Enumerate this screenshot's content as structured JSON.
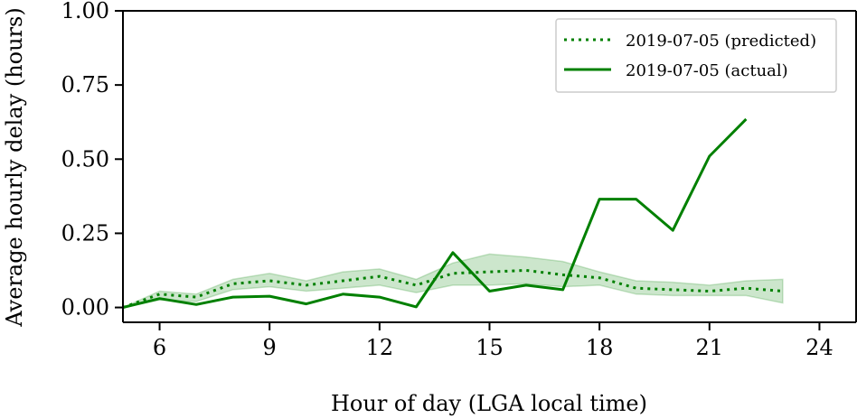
{
  "chart_data": {
    "type": "line",
    "title": "",
    "xlabel": "Hour of day (LGA local time)",
    "ylabel": "Average hourly delay (hours)",
    "xlim": [
      5,
      25
    ],
    "ylim": [
      -0.05,
      1.0
    ],
    "xticks": [
      6,
      9,
      12,
      15,
      18,
      21,
      24
    ],
    "yticks": [
      0.0,
      0.25,
      0.5,
      0.75,
      1.0
    ],
    "ytick_labels": [
      "0.00",
      "0.25",
      "0.50",
      "0.75",
      "1.00"
    ],
    "grid": false,
    "legend_position": "top-right",
    "series": [
      {
        "name": "2019-07-05 (predicted)",
        "style": "dotted",
        "color": "#008000",
        "x": [
          5,
          6,
          7,
          8,
          9,
          10,
          11,
          12,
          13,
          14,
          15,
          16,
          17,
          18,
          19,
          20,
          21,
          22,
          23
        ],
        "y": [
          0.0,
          0.045,
          0.035,
          0.08,
          0.09,
          0.075,
          0.09,
          0.105,
          0.075,
          0.115,
          0.12,
          0.125,
          0.11,
          0.1,
          0.065,
          0.06,
          0.055,
          0.065,
          0.055
        ],
        "band_lower": [
          0.0,
          0.025,
          0.02,
          0.06,
          0.07,
          0.055,
          0.065,
          0.075,
          0.05,
          0.075,
          0.075,
          0.08,
          0.07,
          0.075,
          0.045,
          0.04,
          0.04,
          0.04,
          0.015
        ],
        "band_upper": [
          0.0,
          0.055,
          0.045,
          0.095,
          0.115,
          0.09,
          0.12,
          0.13,
          0.095,
          0.15,
          0.18,
          0.17,
          0.155,
          0.12,
          0.09,
          0.085,
          0.075,
          0.09,
          0.095
        ]
      },
      {
        "name": "2019-07-05 (actual)",
        "style": "solid",
        "color": "#008000",
        "x": [
          5,
          6,
          7,
          8,
          9,
          10,
          11,
          12,
          13,
          14,
          15,
          16,
          17,
          18,
          19,
          20,
          21,
          22
        ],
        "y": [
          0.0,
          0.03,
          0.01,
          0.035,
          0.038,
          0.012,
          0.045,
          0.035,
          0.002,
          0.185,
          0.055,
          0.075,
          0.06,
          0.365,
          0.365,
          0.26,
          0.51,
          0.635
        ]
      }
    ]
  }
}
